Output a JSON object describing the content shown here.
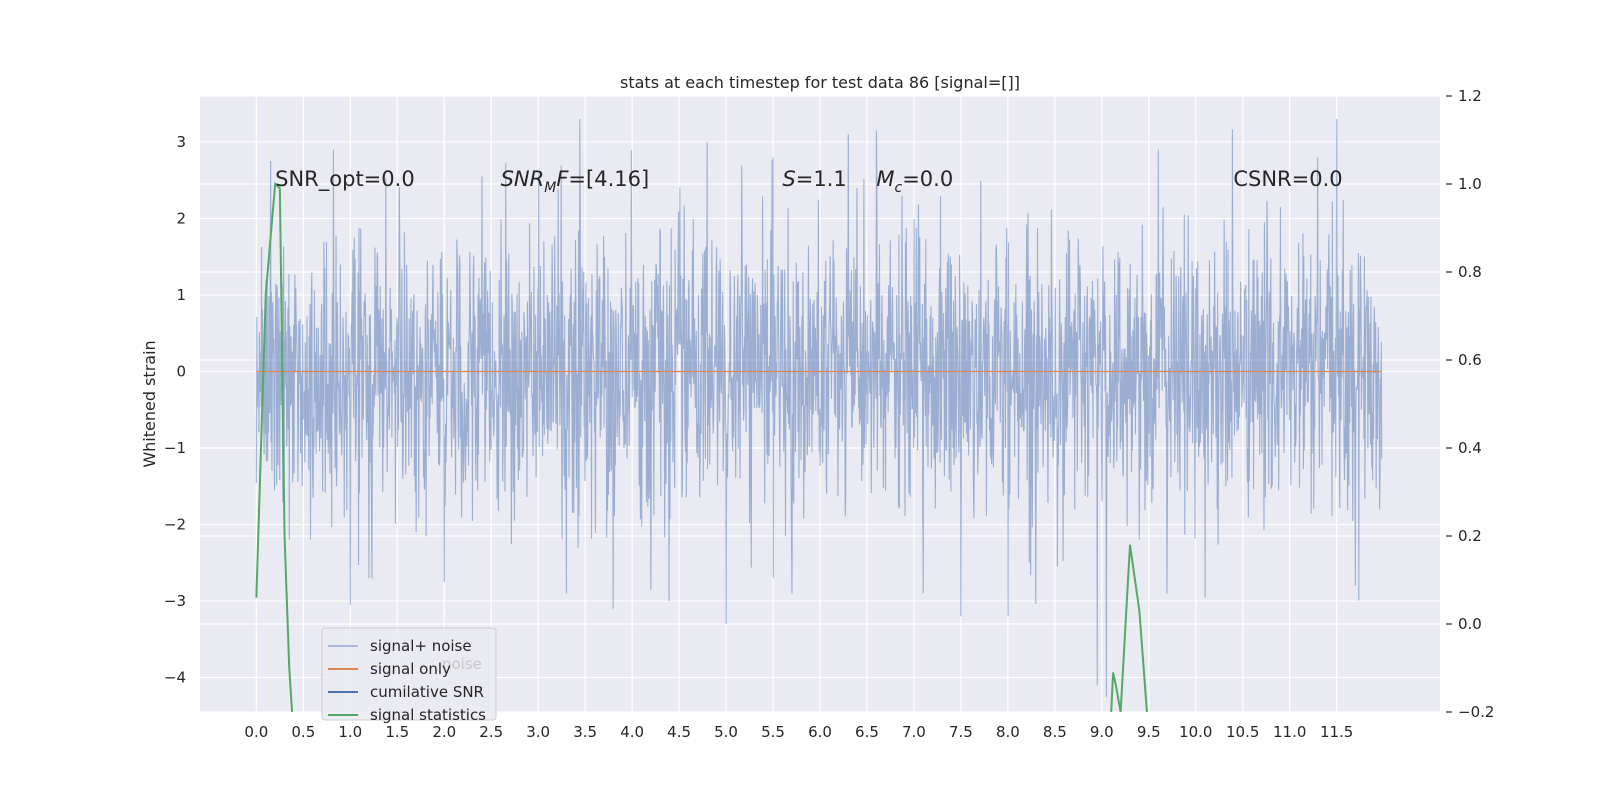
{
  "chart_data": {
    "type": "line",
    "title": "stats at each timestep for test data 86 [signal=[]]",
    "ylabel": "Whitened strain",
    "xlim": [
      -0.6,
      12.6
    ],
    "ylim": [
      -4.45,
      3.6
    ],
    "y2lim": [
      -0.2,
      1.2
    ],
    "grid": true,
    "x_ticks": [
      "0.0",
      "0.5",
      "1.0",
      "1.5",
      "2.0",
      "2.5",
      "3.0",
      "3.5",
      "4.0",
      "4.5",
      "5.0",
      "5.5",
      "6.0",
      "6.5",
      "7.0",
      "7.5",
      "8.0",
      "8.5",
      "9.0",
      "9.5",
      "10.0",
      "10.5",
      "11.0",
      "11.5"
    ],
    "y_ticks": [
      "3",
      "2",
      "1",
      "0",
      "−1",
      "−2",
      "−3",
      "−4"
    ],
    "y2_ticks": [
      "1.2",
      "1.0",
      "0.8",
      "0.6",
      "0.4",
      "0.2",
      "0.0",
      "−0.2"
    ],
    "annotations": [
      {
        "x": 0.2,
        "text": "SNR_opt=0.0",
        "italic": false
      },
      {
        "x": 2.6,
        "text": "SNR",
        "sub": "M",
        "post": "F=[4.16]",
        "italic": true
      },
      {
        "x": 5.6,
        "text": "S",
        "post": "=1.1",
        "italic": true
      },
      {
        "x": 6.6,
        "text": "M",
        "sub": "c",
        "post": "=0.0",
        "italic": true
      },
      {
        "x": 10.4,
        "text": "CSNR=0.0",
        "italic": false
      }
    ],
    "legend": {
      "placement": "lower-left",
      "entries": [
        {
          "label": "signal+ noise",
          "color": "#4c72b0"
        },
        {
          "label": "signal only",
          "color": "#dd8452"
        },
        {
          "label": "cumilative SNR",
          "color": "#4c72b0"
        },
        {
          "label": "signal statistics",
          "color": "#55a868"
        }
      ],
      "ghost_texts": [
        "noise",
        "stics"
      ]
    },
    "series": [
      {
        "name": "signal+ noise",
        "color": "#4c72b0",
        "alpha": 0.5,
        "t_start": 0.0,
        "t_end": 11.98,
        "sigma": 0.9,
        "axis": "left"
      },
      {
        "name": "signal only",
        "color": "#dd8452",
        "constant": 0.0,
        "t_start": 0.0,
        "t_end": 11.98,
        "axis": "left"
      },
      {
        "name": "signal statistics",
        "color": "#55a868",
        "axis": "right",
        "segments": [
          {
            "x": [
              0.0,
              0.1,
              0.2,
              0.25,
              0.3,
              0.35,
              0.38
            ],
            "y": [
              0.06,
              0.75,
              1.0,
              0.99,
              0.2,
              -0.1,
              -0.2
            ]
          },
          {
            "x": [
              9.1,
              9.12,
              9.15,
              9.2,
              9.3,
              9.4,
              9.48
            ],
            "y": [
              -0.2,
              -0.11,
              -0.14,
              -0.2,
              0.18,
              0.03,
              -0.2
            ]
          }
        ]
      }
    ],
    "noise_spikes": [
      {
        "x": 0.15,
        "y": 2.75
      },
      {
        "x": 1.0,
        "y": -3.05
      },
      {
        "x": 1.2,
        "y": -2.7
      },
      {
        "x": 2.0,
        "y": -2.75
      },
      {
        "x": 3.8,
        "y": -3.1
      },
      {
        "x": 4.8,
        "y": 3.0
      },
      {
        "x": 5.0,
        "y": -3.3
      },
      {
        "x": 5.5,
        "y": 2.8
      },
      {
        "x": 5.7,
        "y": -2.9
      },
      {
        "x": 6.3,
        "y": 3.1
      },
      {
        "x": 6.6,
        "y": 3.15
      },
      {
        "x": 7.5,
        "y": -3.2
      },
      {
        "x": 8.0,
        "y": -3.2
      },
      {
        "x": 8.95,
        "y": -4.1
      },
      {
        "x": 9.05,
        "y": -4.25
      },
      {
        "x": 9.6,
        "y": 2.9
      },
      {
        "x": 11.5,
        "y": 3.3
      },
      {
        "x": 11.3,
        "y": 2.8
      },
      {
        "x": 11.7,
        "y": -2.8
      },
      {
        "x": 3.3,
        "y": -2.9
      },
      {
        "x": 4.2,
        "y": -2.85
      },
      {
        "x": 7.1,
        "y": -2.9
      },
      {
        "x": 2.4,
        "y": 2.55
      },
      {
        "x": 10.1,
        "y": -2.95
      }
    ]
  }
}
